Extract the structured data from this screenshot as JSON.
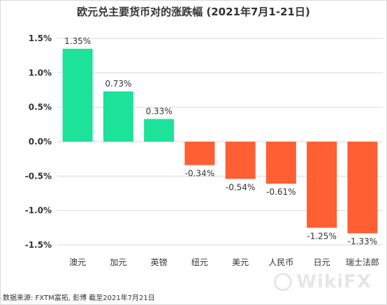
{
  "chart_data": {
    "type": "bar",
    "title": "欧元兑主要货币对的涨跌幅 (2021年7月1-21日)",
    "categories": [
      "澳元",
      "加元",
      "英镑",
      "纽元",
      "美元",
      "人民币",
      "日元",
      "瑞士法郎"
    ],
    "values": [
      1.35,
      0.73,
      0.33,
      -0.34,
      -0.54,
      -0.61,
      -1.25,
      -1.33
    ],
    "value_labels": [
      "1.35%",
      "0.73%",
      "0.33%",
      "-0.34%",
      "-0.54%",
      "-0.61%",
      "-1.25%",
      "-1.33%"
    ],
    "ylim": [
      -1.5,
      1.5
    ],
    "yticks": [
      1.5,
      1.0,
      0.5,
      0.0,
      -0.5,
      -1.0,
      -1.5
    ],
    "ytick_labels": [
      "1.5%",
      "1.0%",
      "0.5%",
      "0.0%",
      "-0.5%",
      "-1.0%",
      "-1.5%"
    ],
    "xlabel": "",
    "ylabel": "",
    "grid": true,
    "colors": {
      "positive": "#1de39a",
      "negative": "#ff5f33",
      "grid": "#d9d9d9"
    }
  },
  "source": "数据来源: FXTM富拓, 彭博 截至2021年7月21日",
  "watermark": {
    "icon": "wikifx-logo-icon",
    "text": "WikiFX"
  }
}
